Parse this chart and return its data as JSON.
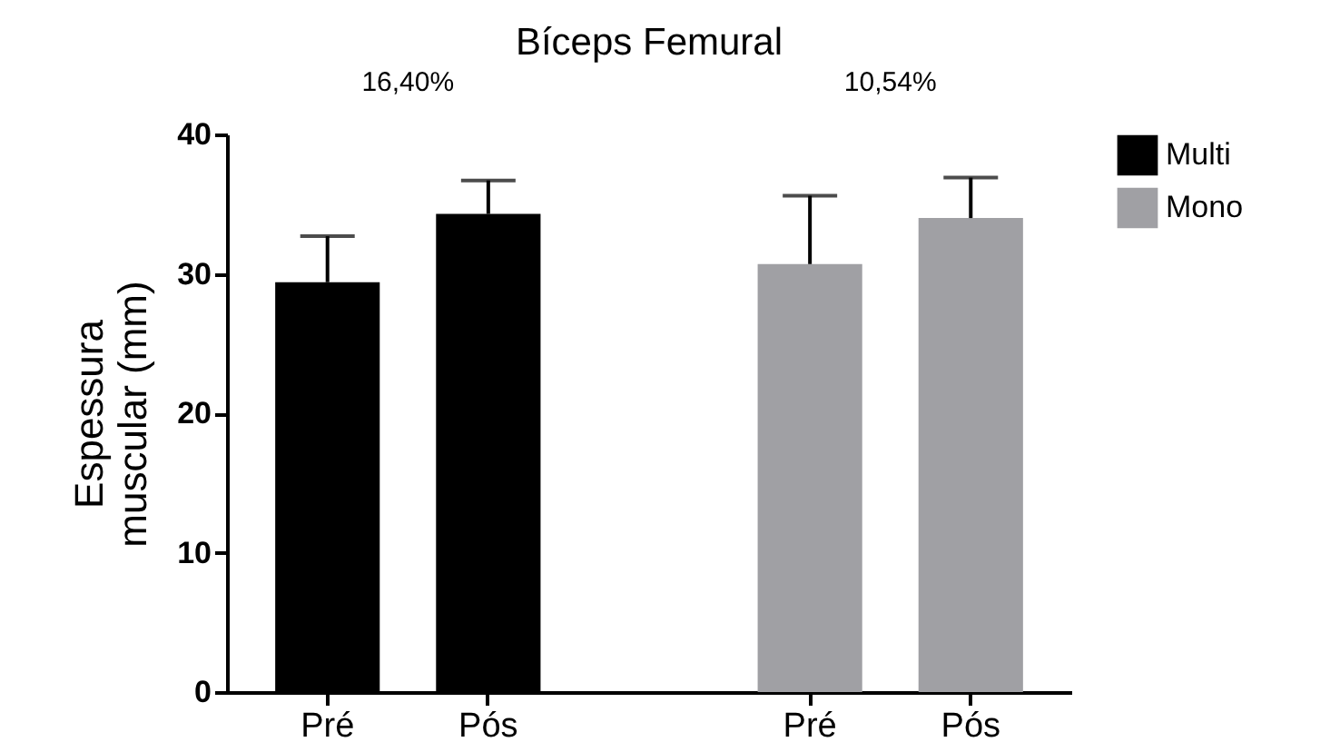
{
  "chart_data": {
    "type": "bar",
    "title": "Bíceps Femural",
    "ylabel": "Espessura muscular (mm)",
    "categories": [
      "Pré",
      "Pós",
      "Pré",
      "Pós"
    ],
    "series": [
      {
        "name": "Multi",
        "color": "#000000",
        "values": [
          29.4,
          34.3,
          null,
          null
        ],
        "errors": [
          [
            29.4,
            32.7
          ],
          [
            34.3,
            36.7
          ],
          null,
          null
        ]
      },
      {
        "name": "Mono",
        "color": "#a0a0a4",
        "values": [
          null,
          null,
          30.7,
          34.0
        ],
        "errors": [
          null,
          null,
          [
            30.7,
            35.6
          ],
          [
            34.0,
            36.9
          ]
        ]
      }
    ],
    "ylim": [
      0,
      40
    ],
    "yticks": [
      0,
      10,
      20,
      30,
      40
    ],
    "annotations": [
      "16,40%",
      "10,54%"
    ],
    "legend": "top right",
    "grid": false
  }
}
